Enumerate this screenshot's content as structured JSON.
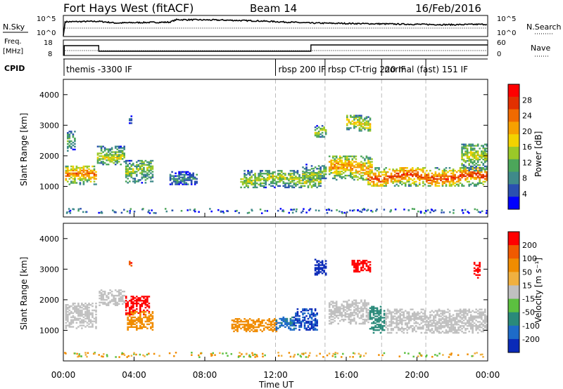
{
  "header": {
    "title": "Fort Hays West (fitACF)",
    "beam": "Beam 14",
    "date": "16/Feb/2016"
  },
  "nsky_panel": {
    "left_label": "N.Sky",
    "right_label": "N.Search",
    "left_ticks": [
      "10^5",
      "10^0"
    ],
    "right_ticks": [
      "10^5",
      "10^0"
    ]
  },
  "freq_panel": {
    "left_label_line1": "Freq.",
    "left_label_line2": "[MHz]",
    "right_label": "Nave",
    "left_ticks": [
      "18",
      "8"
    ],
    "right_ticks": [
      "60",
      "0"
    ]
  },
  "cpid_panel": {
    "label": "CPID",
    "modes": [
      {
        "name": "themis -3300 IF",
        "start_hour": 0
      },
      {
        "name": "rbsp 200 IF",
        "start_hour": 12
      },
      {
        "name": "rbsp CT-trig 220 IF",
        "start_hour": 14.8
      },
      {
        "name": "normal (fast) 151 IF",
        "start_hour": 18
      }
    ]
  },
  "power_panel": {
    "ylabel": "Slant Range [km]",
    "yticks": [
      "1000",
      "2000",
      "3000",
      "4000"
    ],
    "colorbar_label": "Power [dB]",
    "colorbar_ticks": [
      "28",
      "24",
      "20",
      "16",
      "12",
      "8",
      "4"
    ],
    "colors": [
      "#0000ff",
      "#2a4fb0",
      "#3f8a8a",
      "#4ca65a",
      "#9ac828",
      "#f2d200",
      "#f6a000",
      "#f06a00",
      "#e23000",
      "#ff0000"
    ]
  },
  "velocity_panel": {
    "ylabel": "Slant Range [km]",
    "yticks": [
      "1000",
      "2000",
      "3000",
      "4000"
    ],
    "colorbar_label": "Velocity [m s⁻¹]",
    "colorbar_ticks": [
      "200",
      "100",
      "50",
      "15",
      "-15",
      "-50",
      "-100",
      "-200"
    ],
    "colors": [
      "#0a2ab8",
      "#1e6bc8",
      "#2a8a7a",
      "#5cc040",
      "#c0c0c0",
      "#f0b040",
      "#f08c00",
      "#f05a00",
      "#ff0000"
    ]
  },
  "xaxis": {
    "label": "Time UT",
    "ticks": [
      "00:00",
      "04:00",
      "08:00",
      "12:00",
      "16:00",
      "20:00",
      "00:00"
    ]
  },
  "chart_data": {
    "type": "heatmap",
    "x_range_hours": [
      0,
      24
    ],
    "y_range_km": [
      0,
      4500
    ],
    "power_db_range": [
      0,
      30
    ],
    "velocity_range": [
      -250,
      250
    ],
    "nsky_level_log10": [
      [
        0,
        0.2
      ],
      [
        0.1,
        3.5
      ],
      [
        2,
        3.6
      ],
      [
        3,
        3.2
      ],
      [
        4,
        3.3
      ],
      [
        6,
        3.4
      ],
      [
        6.4,
        4.0
      ],
      [
        9,
        3.9
      ],
      [
        11,
        3.7
      ],
      [
        14,
        3.2
      ],
      [
        18,
        3.0
      ],
      [
        22,
        2.8
      ],
      [
        24,
        2.9
      ]
    ],
    "frequency_mhz_segments": [
      [
        0.05,
        2,
        15
      ],
      [
        2,
        14,
        11
      ],
      [
        14,
        24,
        15.5
      ]
    ],
    "mode_boundaries_hours": [
      12,
      14.8,
      18,
      20.5
    ],
    "power_echo_regions": [
      {
        "t0": 0.1,
        "t1": 1.9,
        "r0": 1050,
        "r1": 1650,
        "level": 0.75
      },
      {
        "t0": 0.2,
        "t1": 0.7,
        "r0": 2100,
        "r1": 2800,
        "level": 0.35
      },
      {
        "t0": 1.9,
        "t1": 3.5,
        "r0": 1700,
        "r1": 2300,
        "level": 0.5
      },
      {
        "t0": 3.5,
        "t1": 5.0,
        "r0": 1100,
        "r1": 1850,
        "level": 0.45
      },
      {
        "t0": 3.7,
        "t1": 3.9,
        "r0": 3050,
        "r1": 3300,
        "level": 0.2
      },
      {
        "t0": 6.0,
        "t1": 7.5,
        "r0": 1050,
        "r1": 1500,
        "level": 0.25
      },
      {
        "t0": 10.0,
        "t1": 14.5,
        "r0": 950,
        "r1": 1500,
        "level": 0.5
      },
      {
        "t0": 13.5,
        "t1": 14.8,
        "r0": 1200,
        "r1": 1700,
        "level": 0.45
      },
      {
        "t0": 14.2,
        "t1": 14.8,
        "r0": 2600,
        "r1": 3000,
        "level": 0.5
      },
      {
        "t0": 16.0,
        "t1": 17.4,
        "r0": 2800,
        "r1": 3300,
        "level": 0.6
      },
      {
        "t0": 15.0,
        "t1": 17.5,
        "r0": 1200,
        "r1": 2000,
        "level": 0.7
      },
      {
        "t0": 17.2,
        "t1": 24.0,
        "r0": 1000,
        "r1": 1600,
        "level": 0.85
      },
      {
        "t0": 22.5,
        "t1": 24.0,
        "r0": 1500,
        "r1": 2400,
        "level": 0.5
      }
    ],
    "velocity_echo_regions": [
      {
        "t0": 0.1,
        "t1": 1.9,
        "r0": 1050,
        "r1": 1900,
        "vel": 0
      },
      {
        "t0": 2.0,
        "t1": 3.5,
        "r0": 1800,
        "r1": 2300,
        "vel": 0
      },
      {
        "t0": 3.5,
        "t1": 4.8,
        "r0": 1500,
        "r1": 2100,
        "vel": -220
      },
      {
        "t0": 3.6,
        "t1": 5.0,
        "r0": 1000,
        "r1": 1600,
        "vel": -70
      },
      {
        "t0": 3.7,
        "t1": 3.9,
        "r0": 3050,
        "r1": 3250,
        "vel": -180
      },
      {
        "t0": 9.5,
        "t1": 12.0,
        "r0": 950,
        "r1": 1400,
        "vel": -90
      },
      {
        "t0": 12.0,
        "t1": 13.0,
        "r0": 1000,
        "r1": 1450,
        "vel": 80
      },
      {
        "t0": 13.0,
        "t1": 14.3,
        "r0": 1000,
        "r1": 1700,
        "vel": 150
      },
      {
        "t0": 14.2,
        "t1": 14.8,
        "r0": 2800,
        "r1": 3300,
        "vel": 220
      },
      {
        "t0": 16.3,
        "t1": 17.4,
        "r0": 2900,
        "r1": 3300,
        "vel": -200
      },
      {
        "t0": 15.0,
        "t1": 17.3,
        "r0": 1200,
        "r1": 2000,
        "vel": 0
      },
      {
        "t0": 17.3,
        "t1": 18.2,
        "r0": 900,
        "r1": 1800,
        "vel": 45
      },
      {
        "t0": 18.2,
        "t1": 24.0,
        "r0": 900,
        "r1": 1700,
        "vel": 0
      },
      {
        "t0": 23.2,
        "t1": 23.6,
        "r0": 2700,
        "r1": 3200,
        "vel": -220
      }
    ]
  }
}
